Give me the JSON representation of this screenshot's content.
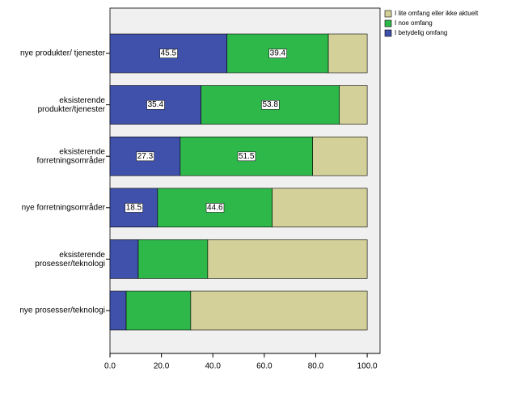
{
  "chart_data": {
    "type": "stacked-barh",
    "categories": [
      "nye produkter/ tjenester",
      "eksisterende\nprodukter/tjenester",
      "eksisterende\nforretningsområder",
      "nye forretningsområder",
      "eksisterende\nprosesser/teknologi",
      "nye prosesser/teknologi"
    ],
    "series": [
      {
        "name": "I betydelig omfang",
        "color": "#3f51aa",
        "values": [
          45.5,
          35.4,
          27.3,
          18.5,
          11.0,
          6.3
        ],
        "value_labels": [
          "45.5",
          "35.4",
          "27.3",
          "18.5",
          null,
          null
        ]
      },
      {
        "name": "I noe omfang",
        "color": "#2eb84a",
        "values": [
          39.4,
          53.8,
          51.5,
          44.6,
          27.0,
          25.1
        ],
        "value_labels": [
          "39.4",
          "53.8",
          "51.5",
          "44.6",
          null,
          null
        ]
      },
      {
        "name": "I lite omfang eller ikke aktuelt",
        "color": "#d4d09a",
        "values": [
          15.1,
          10.8,
          21.2,
          36.9,
          62.0,
          68.6
        ]
      }
    ],
    "xlim": [
      0,
      105
    ],
    "xticks": [
      {
        "value": 0,
        "label": "0.0"
      },
      {
        "value": 20,
        "label": "20.0"
      },
      {
        "value": 40,
        "label": "40.0"
      },
      {
        "value": 60,
        "label": "60.0"
      },
      {
        "value": 80,
        "label": "80.0"
      },
      {
        "value": 100,
        "label": "100.0"
      }
    ]
  }
}
